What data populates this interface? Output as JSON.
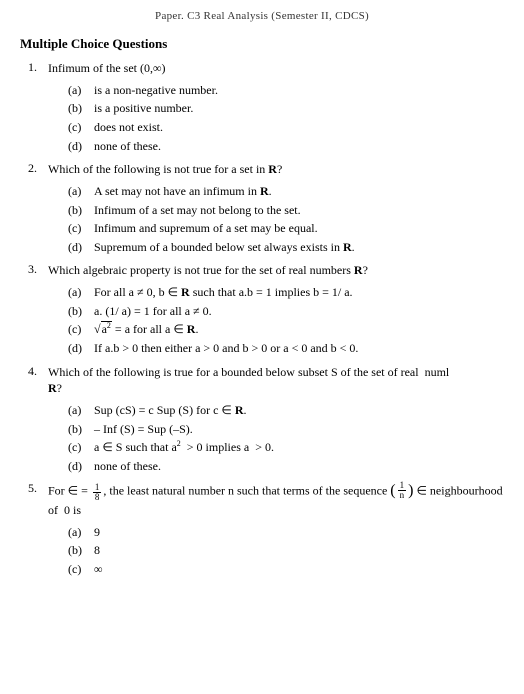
{
  "header_crop": "Paper. C3 Real Analysis (Semester II, CDCS)",
  "section_title": "Multiple Choice Questions",
  "questions": [
    {
      "num": "1.",
      "text": "Infimum of the set (0,∞)",
      "options": [
        {
          "label": "(a)",
          "text": "is a non-negative number."
        },
        {
          "label": "(b)",
          "text": "is a positive number."
        },
        {
          "label": "(c)",
          "text": "does not exist."
        },
        {
          "label": "(d)",
          "text": "none of these."
        }
      ]
    },
    {
      "num": "2.",
      "text_html": "Which of the following is not true for a set in <span class='bold'>R</span>?",
      "options": [
        {
          "label": "(a)",
          "text_html": "A set may not have an infimum in <span class='bold'>R</span>."
        },
        {
          "label": "(b)",
          "text": "Infimum of a set may not belong to the set."
        },
        {
          "label": "(c)",
          "text": "Infimum and supremum of a set may be equal."
        },
        {
          "label": "(d)",
          "text_html": "Supremum of a bounded below set always exists in <span class='bold'>R</span>."
        }
      ]
    },
    {
      "num": "3.",
      "text_html": "Which algebraic property is not true for the set of real numbers <span class='bold'>R</span>?",
      "options": [
        {
          "label": "(a)",
          "text_html": "For all a ≠ 0, b ∈ <span class='bold'>R</span> such that a.b = 1 implies b = 1/ a."
        },
        {
          "label": "(b)",
          "text": "a. (1/ a) = 1 for all a ≠ 0."
        },
        {
          "label": "(c)",
          "text_html": "√<span class='sqrt'>a<sup>2</sup></span> = a for all a ∈ <span class='bold'>R</span>."
        },
        {
          "label": "(d)",
          "text": "If a.b > 0 then either a > 0 and b > 0 or a < 0 and b < 0."
        }
      ]
    },
    {
      "num": "4.",
      "text_html": "Which of the following is true for a bounded below subset S of the set of real&nbsp;&nbsp;numl<br><span class='bold'>R</span>?",
      "options": [
        {
          "label": "(a)",
          "text_html": "Sup (cS) = c Sup (S) for c ∈ <span class='bold'>R</span>."
        },
        {
          "label": "(b)",
          "text": "– Inf (S) = Sup (–S)."
        },
        {
          "label": "(c)",
          "text_html": "a ∈ S such that a<sup>2</sup> &nbsp;> 0 implies a &nbsp;> 0."
        },
        {
          "label": "(d)",
          "text": "none of these."
        }
      ]
    },
    {
      "num": "5.",
      "text_html": "For ∈ = <span class='frac'><span class='num'>1</span><span class='den'>8</span></span>, the least natural number n such that terms of the sequence <span class='paren-frac'><span class='big-paren'>(</span><span class='frac'><span class='num'>1</span><span class='den'>n</span></span><span class='big-paren'>)</span></span> ∈ neighbourhood of &nbsp;0 is",
      "options": [
        {
          "label": "(a)",
          "text": "9"
        },
        {
          "label": "(b)",
          "text": "8"
        },
        {
          "label": "(c)",
          "text": "∞"
        }
      ]
    }
  ]
}
